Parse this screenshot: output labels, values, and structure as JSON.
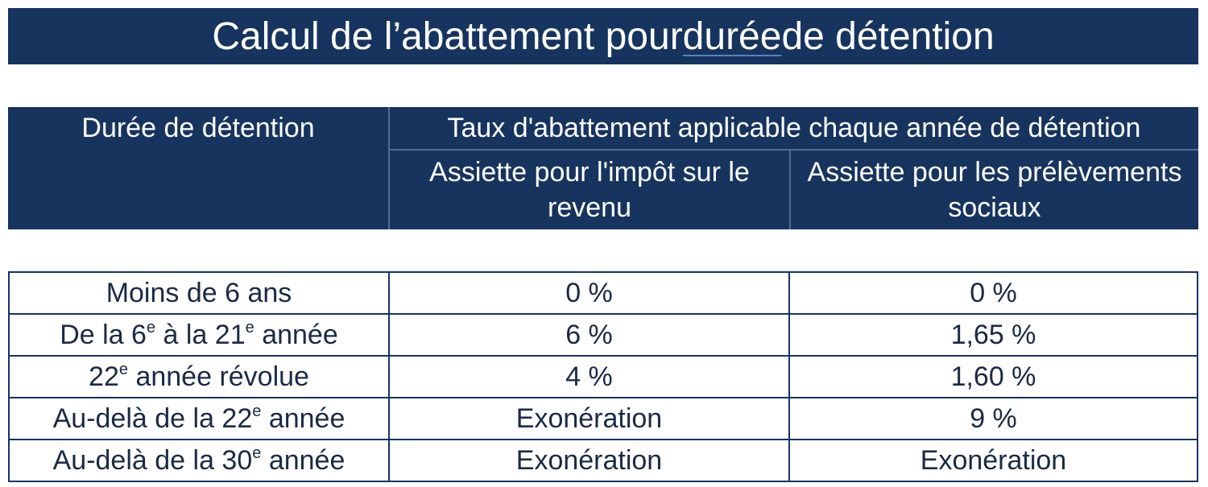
{
  "title": {
    "before": "Calcul de l’abattement pour ",
    "underlined": "durée",
    "after": " de détention"
  },
  "header": {
    "duree": "Durée de détention",
    "taux": "Taux d'abattement applicable chaque année de détention",
    "assiette_ir": "Assiette pour l'impôt sur le revenu",
    "assiette_ps": "Assiette pour les prélèvements sociaux"
  },
  "rows": [
    {
      "duree": "Moins de 6 ans",
      "ir": "0 %",
      "ps": "0 %"
    },
    {
      "duree_a": "De la 6",
      "sup1": "e",
      "duree_b": " à la 21",
      "sup2": "e",
      "duree_c": " année",
      "ir": "6 %",
      "ps": "1,65 %"
    },
    {
      "duree_a": "22",
      "sup1": "e",
      "duree_b": " année révolue",
      "ir": "4 %",
      "ps": "1,60 %"
    },
    {
      "duree_a": "Au-delà de la 22",
      "sup1": "e",
      "duree_b": " année",
      "ir": "Exonération",
      "ps": "9 %"
    },
    {
      "duree_a": "Au-delà de la 30",
      "sup1": "e",
      "duree_b": " année",
      "ir": "Exonération",
      "ps": "Exonération"
    }
  ]
}
